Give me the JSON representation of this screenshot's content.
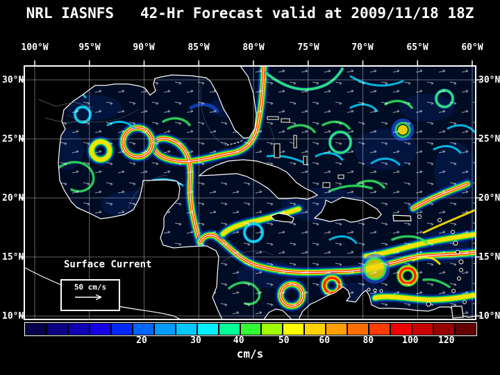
{
  "title": "NRL IASNFS   42-Hr Forecast valid at 2009/11/18 18Z",
  "map": {
    "lon_labels": [
      "100°W",
      "95°W",
      "90°W",
      "85°W",
      "80°W",
      "75°W",
      "70°W",
      "65°W",
      "60°W"
    ],
    "lat_labels": [
      "30°N",
      "25°N",
      "20°N",
      "15°N",
      "10°N"
    ],
    "legend": {
      "title": "Surface Current",
      "scale_label": "50 cm/s"
    }
  },
  "colorbar": {
    "unit": "cm/s",
    "ticks": [
      {
        "label": "20",
        "pos": 0.26
      },
      {
        "label": "30",
        "pos": 0.38
      },
      {
        "label": "40",
        "pos": 0.475
      },
      {
        "label": "50",
        "pos": 0.575
      },
      {
        "label": "60",
        "pos": 0.665
      },
      {
        "label": "80",
        "pos": 0.762
      },
      {
        "label": "100",
        "pos": 0.855
      },
      {
        "label": "120",
        "pos": 0.935
      }
    ],
    "colors": [
      "#05004a",
      "#0b0080",
      "#1000b4",
      "#1500e6",
      "#0028ff",
      "#0064ff",
      "#009cff",
      "#00c8ff",
      "#00f0ff",
      "#00ff96",
      "#32ff32",
      "#a0ff00",
      "#ffff00",
      "#ffd200",
      "#ffa000",
      "#ff6e00",
      "#ff3c00",
      "#f00000",
      "#c80000",
      "#960000",
      "#640000"
    ]
  },
  "palette": {
    "background": "#000000",
    "ocean": "#000c24",
    "land": "#000000",
    "coastline": "#ffffff",
    "grid_lines": "#ffffff",
    "text": "#ffffff",
    "vector_arrows": "#ffffff"
  }
}
